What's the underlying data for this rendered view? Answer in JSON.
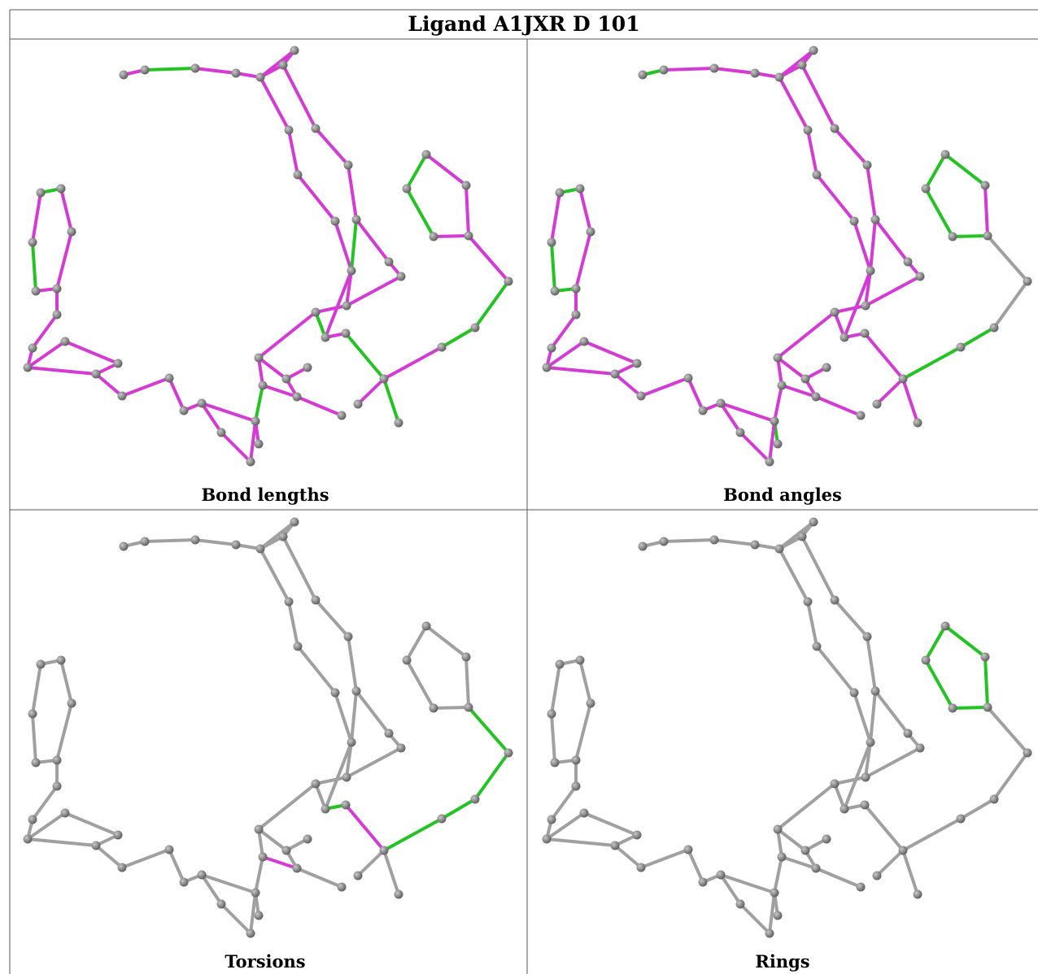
{
  "title": "Ligand A1JXR D 101",
  "panels": [
    {
      "caption": "Bond lengths"
    },
    {
      "caption": "Bond angles"
    },
    {
      "caption": "Torsions"
    },
    {
      "caption": "Rings"
    }
  ]
}
